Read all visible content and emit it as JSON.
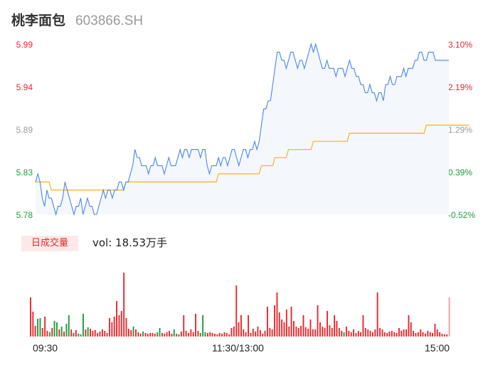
{
  "header": {
    "name": "桃李面包",
    "code": "603866.SH"
  },
  "price_axis": {
    "left": [
      {
        "label": "5.99",
        "tone": "up"
      },
      {
        "label": "5.94",
        "tone": "up"
      },
      {
        "label": "5.89",
        "tone": "flat"
      },
      {
        "label": "5.83",
        "tone": "down"
      },
      {
        "label": "5.78",
        "tone": "down"
      }
    ],
    "right": [
      {
        "label": "3.10%",
        "tone": "up"
      },
      {
        "label": "2.19%",
        "tone": "up"
      },
      {
        "label": "1.29%",
        "tone": "flat"
      },
      {
        "label": "0.39%",
        "tone": "down"
      },
      {
        "label": "-0.52%",
        "tone": "down"
      }
    ]
  },
  "volume": {
    "badge": "日成交量",
    "text": "vol: 18.53万手"
  },
  "time_axis": [
    "09:30",
    "11:30/13:00",
    "15:00"
  ],
  "colors": {
    "price_line": "#4a86e8",
    "avg_line": "#f5b82e",
    "up": "#e8272c",
    "down": "#1a9e3a",
    "fill": "#f4f7fc"
  },
  "chart_data": {
    "type": "line",
    "title": "",
    "ylim": [
      5.78,
      5.99
    ],
    "series": [
      {
        "values": [
          5.82,
          5.83,
          5.82,
          5.8,
          5.79,
          5.81,
          5.8,
          5.8,
          5.79,
          5.78,
          5.79,
          5.79,
          5.8,
          5.82,
          5.81,
          5.8,
          5.79,
          5.78,
          5.79,
          5.79,
          5.8,
          5.78,
          5.79,
          5.8,
          5.79,
          5.79,
          5.78,
          5.78,
          5.79,
          5.8,
          5.81,
          5.8,
          5.81,
          5.81,
          5.8,
          5.81,
          5.81,
          5.82,
          5.82,
          5.81,
          5.82,
          5.82,
          5.83,
          5.84,
          5.86,
          5.85,
          5.85,
          5.84,
          5.84,
          5.84,
          5.83,
          5.84,
          5.84,
          5.85,
          5.84,
          5.84,
          5.84,
          5.83,
          5.84,
          5.85,
          5.84,
          5.84,
          5.84,
          5.85,
          5.86,
          5.85,
          5.86,
          5.86,
          5.85,
          5.86,
          5.86,
          5.86,
          5.86,
          5.85,
          5.86,
          5.86,
          5.84,
          5.83,
          5.84,
          5.84,
          5.84,
          5.85,
          5.84,
          5.85,
          5.85,
          5.84,
          5.85,
          5.86,
          5.86,
          5.85,
          5.84,
          5.85,
          5.86,
          5.86,
          5.85,
          5.86,
          5.86,
          5.87,
          5.86,
          5.87,
          5.89,
          5.91,
          5.91,
          5.92,
          5.92,
          5.94,
          5.96,
          5.98,
          5.98,
          5.97,
          5.97,
          5.96,
          5.97,
          5.98,
          5.98,
          5.97,
          5.96,
          5.97,
          5.97,
          5.96,
          5.97,
          5.98,
          5.99,
          5.98,
          5.99,
          5.98,
          5.97,
          5.96,
          5.96,
          5.97,
          5.96,
          5.96,
          5.96,
          5.95,
          5.96,
          5.96,
          5.96,
          5.95,
          5.96,
          5.97,
          5.96,
          5.96,
          5.95,
          5.95,
          5.94,
          5.94,
          5.93,
          5.93,
          5.94,
          5.93,
          5.93,
          5.92,
          5.93,
          5.93,
          5.92,
          5.94,
          5.94,
          5.95,
          5.94,
          5.94,
          5.95,
          5.95,
          5.95,
          5.96,
          5.95,
          5.96,
          5.96,
          5.96,
          5.97,
          5.97,
          5.98,
          5.98,
          5.97,
          5.97,
          5.98,
          5.98,
          5.98,
          5.97,
          5.97,
          5.97,
          5.97,
          5.97,
          5.97,
          5.97
        ]
      },
      {
        "values": [
          5.82,
          5.82,
          5.82,
          5.82,
          5.82,
          5.82,
          5.82,
          5.81,
          5.81,
          5.81,
          5.81,
          5.81,
          5.81,
          5.81,
          5.81,
          5.81,
          5.81,
          5.81,
          5.81,
          5.81,
          5.81,
          5.81,
          5.81,
          5.81,
          5.81,
          5.81,
          5.81,
          5.81,
          5.81,
          5.81,
          5.81,
          5.81,
          5.81,
          5.81,
          5.81,
          5.81,
          5.81,
          5.81,
          5.81,
          5.81,
          5.82,
          5.82,
          5.82,
          5.82,
          5.82,
          5.82,
          5.82,
          5.82,
          5.82,
          5.82,
          5.82,
          5.82,
          5.82,
          5.82,
          5.82,
          5.82,
          5.82,
          5.82,
          5.82,
          5.82,
          5.82,
          5.82,
          5.82,
          5.82,
          5.82,
          5.82,
          5.82,
          5.82,
          5.82,
          5.82,
          5.82,
          5.82,
          5.82,
          5.82,
          5.82,
          5.82,
          5.82,
          5.82,
          5.82,
          5.82,
          5.82,
          5.83,
          5.83,
          5.83,
          5.83,
          5.83,
          5.83,
          5.83,
          5.83,
          5.83,
          5.83,
          5.83,
          5.83,
          5.83,
          5.83,
          5.83,
          5.83,
          5.83,
          5.83,
          5.83,
          5.84,
          5.84,
          5.84,
          5.84,
          5.84,
          5.84,
          5.85,
          5.85,
          5.85,
          5.85,
          5.85,
          5.85,
          5.86,
          5.86,
          5.86,
          5.86,
          5.86,
          5.86,
          5.86,
          5.86,
          5.86,
          5.86,
          5.86,
          5.87,
          5.87,
          5.87,
          5.87,
          5.87,
          5.87,
          5.87,
          5.87,
          5.87,
          5.87,
          5.87,
          5.87,
          5.87,
          5.87,
          5.87,
          5.87,
          5.88,
          5.88,
          5.88,
          5.88,
          5.88,
          5.88,
          5.88,
          5.88,
          5.88,
          5.88,
          5.88,
          5.88,
          5.88,
          5.88,
          5.88,
          5.88,
          5.88,
          5.88,
          5.88,
          5.88,
          5.88,
          5.88,
          5.88,
          5.88,
          5.88,
          5.88,
          5.88,
          5.88,
          5.88,
          5.88,
          5.88,
          5.88,
          5.88,
          5.88,
          5.89,
          5.89,
          5.89,
          5.89,
          5.89,
          5.89,
          5.89,
          5.89,
          5.89,
          5.89,
          5.89,
          5.89,
          5.89,
          5.89,
          5.89,
          5.89,
          5.89,
          5.89,
          5.89,
          5.89
        ]
      }
    ],
    "volume_bars": [
      {
        "v": 0.55,
        "d": "up"
      },
      {
        "v": 0.35,
        "d": "up"
      },
      {
        "v": 0.15,
        "d": "up"
      },
      {
        "v": 0.25,
        "d": "down"
      },
      {
        "v": 0.26,
        "d": "down"
      },
      {
        "v": 0.12,
        "d": "up"
      },
      {
        "v": 0.28,
        "d": "up"
      },
      {
        "v": 0.08,
        "d": "up"
      },
      {
        "v": 0.06,
        "d": "down"
      },
      {
        "v": 0.12,
        "d": "up"
      },
      {
        "v": 0.22,
        "d": "down"
      },
      {
        "v": 0.2,
        "d": "down"
      },
      {
        "v": 0.1,
        "d": "up"
      },
      {
        "v": 0.14,
        "d": "down"
      },
      {
        "v": 0.07,
        "d": "up"
      },
      {
        "v": 0.18,
        "d": "down"
      },
      {
        "v": 0.3,
        "d": "down"
      },
      {
        "v": 0.1,
        "d": "up"
      },
      {
        "v": 0.05,
        "d": "up"
      },
      {
        "v": 0.09,
        "d": "up"
      },
      {
        "v": 0.04,
        "d": "down"
      },
      {
        "v": 0.03,
        "d": "down"
      },
      {
        "v": 0.32,
        "d": "down"
      },
      {
        "v": 0.1,
        "d": "up"
      },
      {
        "v": 0.13,
        "d": "down"
      },
      {
        "v": 0.11,
        "d": "up"
      },
      {
        "v": 0.08,
        "d": "up"
      },
      {
        "v": 0.09,
        "d": "up"
      },
      {
        "v": 0.05,
        "d": "up"
      },
      {
        "v": 0.07,
        "d": "up"
      },
      {
        "v": 0.1,
        "d": "up"
      },
      {
        "v": 0.08,
        "d": "up"
      },
      {
        "v": 0.05,
        "d": "up"
      },
      {
        "v": 0.26,
        "d": "up"
      },
      {
        "v": 0.2,
        "d": "up"
      },
      {
        "v": 0.28,
        "d": "up"
      },
      {
        "v": 0.5,
        "d": "up"
      },
      {
        "v": 0.3,
        "d": "up"
      },
      {
        "v": 0.36,
        "d": "up"
      },
      {
        "v": 0.9,
        "d": "up"
      },
      {
        "v": 0.26,
        "d": "up"
      },
      {
        "v": 0.11,
        "d": "up"
      },
      {
        "v": 0.09,
        "d": "up"
      },
      {
        "v": 0.14,
        "d": "down"
      },
      {
        "v": 0.1,
        "d": "up"
      },
      {
        "v": 0.06,
        "d": "up"
      },
      {
        "v": 0.04,
        "d": "up"
      },
      {
        "v": 0.07,
        "d": "down"
      },
      {
        "v": 0.05,
        "d": "up"
      },
      {
        "v": 0.04,
        "d": "up"
      },
      {
        "v": 0.05,
        "d": "up"
      },
      {
        "v": 0.05,
        "d": "up"
      },
      {
        "v": 0.04,
        "d": "up"
      },
      {
        "v": 0.06,
        "d": "down"
      },
      {
        "v": 0.12,
        "d": "down"
      },
      {
        "v": 0.05,
        "d": "up"
      },
      {
        "v": 0.04,
        "d": "up"
      },
      {
        "v": 0.06,
        "d": "up"
      },
      {
        "v": 0.08,
        "d": "up"
      },
      {
        "v": 0.04,
        "d": "up"
      },
      {
        "v": 0.1,
        "d": "down"
      },
      {
        "v": 0.04,
        "d": "down"
      },
      {
        "v": 0.03,
        "d": "up"
      },
      {
        "v": 0.07,
        "d": "up"
      },
      {
        "v": 0.3,
        "d": "up"
      },
      {
        "v": 0.08,
        "d": "up"
      },
      {
        "v": 0.05,
        "d": "up"
      },
      {
        "v": 0.1,
        "d": "up"
      },
      {
        "v": 0.06,
        "d": "up"
      },
      {
        "v": 0.32,
        "d": "up"
      },
      {
        "v": 0.08,
        "d": "up"
      },
      {
        "v": 0.05,
        "d": "down"
      },
      {
        "v": 0.3,
        "d": "down"
      },
      {
        "v": 0.06,
        "d": "down"
      },
      {
        "v": 0.05,
        "d": "up"
      },
      {
        "v": 0.06,
        "d": "up"
      },
      {
        "v": 0.05,
        "d": "up"
      },
      {
        "v": 0.04,
        "d": "up"
      },
      {
        "v": 0.03,
        "d": "up"
      },
      {
        "v": 0.05,
        "d": "up"
      },
      {
        "v": 0.04,
        "d": "up"
      },
      {
        "v": 0.06,
        "d": "up"
      },
      {
        "v": 0.05,
        "d": "up"
      },
      {
        "v": 0.03,
        "d": "up"
      },
      {
        "v": 0.12,
        "d": "up"
      },
      {
        "v": 0.14,
        "d": "up"
      },
      {
        "v": 0.72,
        "d": "up"
      },
      {
        "v": 0.2,
        "d": "up"
      },
      {
        "v": 0.3,
        "d": "up"
      },
      {
        "v": 0.1,
        "d": "up"
      },
      {
        "v": 0.06,
        "d": "up"
      },
      {
        "v": 0.3,
        "d": "up"
      },
      {
        "v": 0.05,
        "d": "up"
      },
      {
        "v": 0.11,
        "d": "up"
      },
      {
        "v": 0.07,
        "d": "up"
      },
      {
        "v": 0.14,
        "d": "up"
      },
      {
        "v": 0.09,
        "d": "up"
      },
      {
        "v": 0.04,
        "d": "up"
      },
      {
        "v": 0.08,
        "d": "up"
      },
      {
        "v": 0.42,
        "d": "up"
      },
      {
        "v": 0.12,
        "d": "up"
      },
      {
        "v": 0.1,
        "d": "up"
      },
      {
        "v": 0.44,
        "d": "up"
      },
      {
        "v": 0.62,
        "d": "up"
      },
      {
        "v": 0.34,
        "d": "up"
      },
      {
        "v": 0.24,
        "d": "up"
      },
      {
        "v": 0.2,
        "d": "up"
      },
      {
        "v": 0.38,
        "d": "up"
      },
      {
        "v": 0.14,
        "d": "up"
      },
      {
        "v": 0.42,
        "d": "up"
      },
      {
        "v": 0.22,
        "d": "up"
      },
      {
        "v": 0.14,
        "d": "up"
      },
      {
        "v": 0.12,
        "d": "up"
      },
      {
        "v": 0.15,
        "d": "up"
      },
      {
        "v": 0.3,
        "d": "up"
      },
      {
        "v": 0.13,
        "d": "up"
      },
      {
        "v": 0.11,
        "d": "up"
      },
      {
        "v": 0.24,
        "d": "up"
      },
      {
        "v": 0.1,
        "d": "up"
      },
      {
        "v": 0.1,
        "d": "up"
      },
      {
        "v": 0.44,
        "d": "up"
      },
      {
        "v": 0.2,
        "d": "up"
      },
      {
        "v": 0.14,
        "d": "up"
      },
      {
        "v": 0.12,
        "d": "up"
      },
      {
        "v": 0.36,
        "d": "up"
      },
      {
        "v": 0.16,
        "d": "up"
      },
      {
        "v": 0.12,
        "d": "up"
      },
      {
        "v": 0.3,
        "d": "up"
      },
      {
        "v": 0.22,
        "d": "up"
      },
      {
        "v": 0.12,
        "d": "up"
      },
      {
        "v": 0.08,
        "d": "up"
      },
      {
        "v": 0.06,
        "d": "down"
      },
      {
        "v": 0.14,
        "d": "up"
      },
      {
        "v": 0.08,
        "d": "up"
      },
      {
        "v": 0.06,
        "d": "up"
      },
      {
        "v": 0.1,
        "d": "up"
      },
      {
        "v": 0.05,
        "d": "up"
      },
      {
        "v": 0.08,
        "d": "up"
      },
      {
        "v": 0.06,
        "d": "up"
      },
      {
        "v": 0.3,
        "d": "up"
      },
      {
        "v": 0.12,
        "d": "up"
      },
      {
        "v": 0.1,
        "d": "up"
      },
      {
        "v": 0.08,
        "d": "up"
      },
      {
        "v": 0.06,
        "d": "up"
      },
      {
        "v": 0.1,
        "d": "up"
      },
      {
        "v": 0.62,
        "d": "up"
      },
      {
        "v": 0.12,
        "d": "up"
      },
      {
        "v": 0.1,
        "d": "up"
      },
      {
        "v": 0.06,
        "d": "up"
      },
      {
        "v": 0.05,
        "d": "up"
      },
      {
        "v": 0.07,
        "d": "up"
      },
      {
        "v": 0.08,
        "d": "up"
      },
      {
        "v": 0.06,
        "d": "up"
      },
      {
        "v": 0.05,
        "d": "up"
      },
      {
        "v": 0.12,
        "d": "up"
      },
      {
        "v": 0.08,
        "d": "up"
      },
      {
        "v": 0.1,
        "d": "up"
      },
      {
        "v": 0.1,
        "d": "up"
      },
      {
        "v": 0.3,
        "d": "up"
      },
      {
        "v": 0.2,
        "d": "up"
      },
      {
        "v": 0.08,
        "d": "up"
      },
      {
        "v": 0.05,
        "d": "up"
      },
      {
        "v": 0.06,
        "d": "up"
      },
      {
        "v": 0.1,
        "d": "up"
      },
      {
        "v": 0.06,
        "d": "up"
      },
      {
        "v": 0.04,
        "d": "up"
      },
      {
        "v": 0.08,
        "d": "up"
      },
      {
        "v": 0.06,
        "d": "up"
      },
      {
        "v": 0.05,
        "d": "up"
      },
      {
        "v": 0.18,
        "d": "up"
      },
      {
        "v": 0.1,
        "d": "up"
      },
      {
        "v": 0.06,
        "d": "up"
      },
      {
        "v": 0.04,
        "d": "up"
      },
      {
        "v": 0.03,
        "d": "up"
      },
      {
        "v": 0.03,
        "d": "up"
      },
      {
        "v": 0.55,
        "d": "up"
      }
    ]
  }
}
